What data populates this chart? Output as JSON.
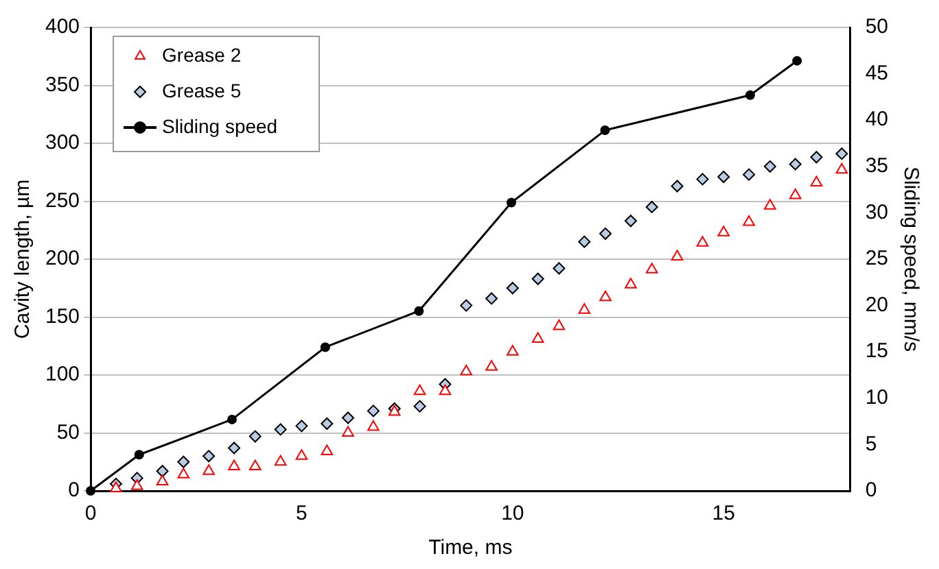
{
  "chart_data": {
    "type": "scatter",
    "xlabel": "Time, ms",
    "ylabel": "Cavity length, µm",
    "y2label": "Sliding speed, mm/s",
    "xlim": [
      0,
      18
    ],
    "xticks": [
      0,
      5,
      10,
      15
    ],
    "ylim": [
      0,
      400
    ],
    "yticks": [
      0,
      50,
      100,
      150,
      200,
      250,
      300,
      350,
      400
    ],
    "y2lim": [
      0,
      50
    ],
    "y2ticks": [
      0,
      5,
      10,
      15,
      20,
      25,
      30,
      35,
      40,
      45,
      50
    ],
    "grid": "y",
    "legend": "top left",
    "series": [
      {
        "name": "Grease 2",
        "type": "scatter",
        "marker": "triangle",
        "color": "#ff0000",
        "x": [
          0.6,
          1.1,
          1.7,
          2.2,
          2.8,
          3.4,
          3.9,
          4.5,
          5.0,
          5.6,
          6.1,
          6.7,
          7.2,
          7.8,
          8.4,
          8.9,
          9.5,
          10.0,
          10.6,
          11.1,
          11.7,
          12.2,
          12.8,
          13.3,
          13.9,
          14.5,
          15.0,
          15.6,
          16.1,
          16.7,
          17.2,
          17.8
        ],
        "values": [
          2,
          4,
          8,
          14,
          17,
          21,
          21,
          25,
          30,
          34,
          50,
          55,
          68,
          86,
          86,
          103,
          107,
          120,
          131,
          142,
          156,
          167,
          178,
          191,
          202,
          214,
          223,
          232,
          246,
          255,
          266,
          277
        ]
      },
      {
        "name": "Grease 5",
        "type": "scatter",
        "marker": "diamond",
        "color": "#b8cce4",
        "x": [
          0.6,
          1.1,
          1.7,
          2.2,
          2.8,
          3.4,
          3.9,
          4.5,
          5.0,
          5.6,
          6.1,
          6.7,
          7.2,
          7.8,
          8.4,
          8.9,
          9.5,
          10.0,
          10.6,
          11.1,
          11.7,
          12.2,
          12.8,
          13.3,
          13.9,
          14.5,
          15.0,
          15.6,
          16.1,
          16.7,
          17.2,
          17.8
        ],
        "values": [
          6,
          11,
          17,
          25,
          30,
          37,
          47,
          53,
          56,
          58,
          63,
          69,
          71,
          73,
          92,
          160,
          166,
          175,
          183,
          192,
          215,
          222,
          233,
          245,
          263,
          269,
          271,
          273,
          280,
          282,
          288,
          291
        ]
      },
      {
        "name": "Sliding speed",
        "type": "line",
        "marker": "circle",
        "line_style": "solid",
        "color": "#000000",
        "axis": "y2",
        "x": [
          0,
          1.15,
          3.35,
          5.56,
          7.78,
          9.97,
          12.19,
          15.63,
          16.74
        ],
        "values": [
          0,
          3.9,
          7.7,
          15.5,
          19.4,
          31.1,
          38.9,
          42.7,
          46.4
        ]
      }
    ]
  }
}
